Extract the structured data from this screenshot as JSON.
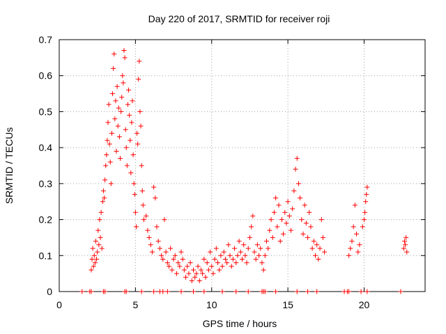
{
  "chart_data": {
    "type": "scatter",
    "title": "Day 220 of 2017, SRMTID for receiver roji",
    "xlabel": "GPS time / hours",
    "ylabel": "SRMTID / TECUs",
    "xlim": [
      0,
      24
    ],
    "ylim": [
      0,
      0.7
    ],
    "xticks": [
      0,
      5,
      10,
      15,
      20
    ],
    "xtick_labels": [
      "0",
      "5",
      "10",
      "15",
      "20"
    ],
    "yticks": [
      0,
      0.1,
      0.2,
      0.3,
      0.4,
      0.5,
      0.6,
      0.7
    ],
    "ytick_labels": [
      "0",
      "0.1",
      "0.2",
      "0.3",
      "0.4",
      "0.5",
      "0.6",
      "0.7"
    ],
    "grid": true,
    "marker": "+",
    "color": "#ff0000",
    "series": [
      {
        "name": "SRMTID",
        "points": [
          [
            2.1,
            0.06
          ],
          [
            2.15,
            0.09
          ],
          [
            2.2,
            0.12
          ],
          [
            2.25,
            0.07
          ],
          [
            2.3,
            0.1
          ],
          [
            2.35,
            0.08
          ],
          [
            2.4,
            0.14
          ],
          [
            2.45,
            0.09
          ],
          [
            2.5,
            0.11
          ],
          [
            2.55,
            0.17
          ],
          [
            2.6,
            0.13
          ],
          [
            2.65,
            0.2
          ],
          [
            2.7,
            0.15
          ],
          [
            2.75,
            0.22
          ],
          [
            2.8,
            0.12
          ],
          [
            2.85,
            0.25
          ],
          [
            2.9,
            0.28
          ],
          [
            2.95,
            0.26
          ],
          [
            3.0,
            0.31
          ],
          [
            3.05,
            0.35
          ],
          [
            3.1,
            0.38
          ],
          [
            3.15,
            0.42
          ],
          [
            3.2,
            0.47
          ],
          [
            3.25,
            0.52
          ],
          [
            3.3,
            0.41
          ],
          [
            3.35,
            0.36
          ],
          [
            3.4,
            0.3
          ],
          [
            3.45,
            0.44
          ],
          [
            3.5,
            0.55
          ],
          [
            3.55,
            0.62
          ],
          [
            3.6,
            0.66
          ],
          [
            3.65,
            0.48
          ],
          [
            3.7,
            0.53
          ],
          [
            3.75,
            0.39
          ],
          [
            3.8,
            0.57
          ],
          [
            3.85,
            0.46
          ],
          [
            3.9,
            0.51
          ],
          [
            3.95,
            0.43
          ],
          [
            4.0,
            0.37
          ],
          [
            4.05,
            0.5
          ],
          [
            4.1,
            0.54
          ],
          [
            4.15,
            0.6
          ],
          [
            4.2,
            0.58
          ],
          [
            4.25,
            0.67
          ],
          [
            4.3,
            0.65
          ],
          [
            4.35,
            0.45
          ],
          [
            4.4,
            0.4
          ],
          [
            4.45,
            0.35
          ],
          [
            4.5,
            0.52
          ],
          [
            4.55,
            0.56
          ],
          [
            4.6,
            0.49
          ],
          [
            4.65,
            0.42
          ],
          [
            4.7,
            0.33
          ],
          [
            4.75,
            0.47
          ],
          [
            4.8,
            0.53
          ],
          [
            4.85,
            0.38
          ],
          [
            4.9,
            0.3
          ],
          [
            4.95,
            0.27
          ],
          [
            5.0,
            0.22
          ],
          [
            5.05,
            0.18
          ],
          [
            5.1,
            0.44
          ],
          [
            5.15,
            0.41
          ],
          [
            5.2,
            0.59
          ],
          [
            5.25,
            0.64
          ],
          [
            5.3,
            0.5
          ],
          [
            5.35,
            0.46
          ],
          [
            5.4,
            0.35
          ],
          [
            5.45,
            0.28
          ],
          [
            5.5,
            0.24
          ],
          [
            5.55,
            0.2
          ],
          [
            5.7,
            0.21
          ],
          [
            5.8,
            0.17
          ],
          [
            5.9,
            0.15
          ],
          [
            6.0,
            0.13
          ],
          [
            6.1,
            0.11
          ],
          [
            6.2,
            0.29
          ],
          [
            6.3,
            0.26
          ],
          [
            6.4,
            0.18
          ],
          [
            6.5,
            0.14
          ],
          [
            6.6,
            0.12
          ],
          [
            6.7,
            0.1
          ],
          [
            6.8,
            0.09
          ],
          [
            6.9,
            0.2
          ],
          [
            7.0,
            0.11
          ],
          [
            7.1,
            0.08
          ],
          [
            7.2,
            0.07
          ],
          [
            7.3,
            0.12
          ],
          [
            7.4,
            0.06
          ],
          [
            7.5,
            0.09
          ],
          [
            7.6,
            0.1
          ],
          [
            7.7,
            0.05
          ],
          [
            7.8,
            0.08
          ],
          [
            7.9,
            0.07
          ],
          [
            8.0,
            0.11
          ],
          [
            8.1,
            0.09
          ],
          [
            8.2,
            0.06
          ],
          [
            8.3,
            0.04
          ],
          [
            8.4,
            0.07
          ],
          [
            8.5,
            0.05
          ],
          [
            8.6,
            0.08
          ],
          [
            8.7,
            0.03
          ],
          [
            8.8,
            0.06
          ],
          [
            8.9,
            0.04
          ],
          [
            9.0,
            0.05
          ],
          [
            9.1,
            0.07
          ],
          [
            9.2,
            0.03
          ],
          [
            9.3,
            0.06
          ],
          [
            9.4,
            0.05
          ],
          [
            9.5,
            0.09
          ],
          [
            9.6,
            0.04
          ],
          [
            9.7,
            0.08
          ],
          [
            9.8,
            0.06
          ],
          [
            9.9,
            0.11
          ],
          [
            10.0,
            0.07
          ],
          [
            10.1,
            0.05
          ],
          [
            10.2,
            0.09
          ],
          [
            10.3,
            0.12
          ],
          [
            10.4,
            0.08
          ],
          [
            10.5,
            0.06
          ],
          [
            10.6,
            0.1
          ],
          [
            10.7,
            0.07
          ],
          [
            10.8,
            0.11
          ],
          [
            10.9,
            0.09
          ],
          [
            11.0,
            0.08
          ],
          [
            11.1,
            0.13
          ],
          [
            11.2,
            0.1
          ],
          [
            11.3,
            0.07
          ],
          [
            11.4,
            0.09
          ],
          [
            11.5,
            0.12
          ],
          [
            11.6,
            0.08
          ],
          [
            11.7,
            0.1
          ],
          [
            11.8,
            0.14
          ],
          [
            11.9,
            0.11
          ],
          [
            12.0,
            0.09
          ],
          [
            12.1,
            0.13
          ],
          [
            12.2,
            0.1
          ],
          [
            12.3,
            0.08
          ],
          [
            12.4,
            0.12
          ],
          [
            12.5,
            0.15
          ],
          [
            12.6,
            0.18
          ],
          [
            12.7,
            0.21
          ],
          [
            12.8,
            0.11
          ],
          [
            12.9,
            0.09
          ],
          [
            13.0,
            0.13
          ],
          [
            13.1,
            0.1
          ],
          [
            13.2,
            0.12
          ],
          [
            13.3,
            0.08
          ],
          [
            13.4,
            0.06
          ],
          [
            13.5,
            0.1
          ],
          [
            13.6,
            0.14
          ],
          [
            13.7,
            0.12
          ],
          [
            13.8,
            0.17
          ],
          [
            13.9,
            0.2
          ],
          [
            14.0,
            0.15
          ],
          [
            14.1,
            0.22
          ],
          [
            14.2,
            0.26
          ],
          [
            14.3,
            0.18
          ],
          [
            14.4,
            0.24
          ],
          [
            14.5,
            0.14
          ],
          [
            14.6,
            0.2
          ],
          [
            14.7,
            0.16
          ],
          [
            14.8,
            0.22
          ],
          [
            14.9,
            0.19
          ],
          [
            15.0,
            0.25
          ],
          [
            15.1,
            0.21
          ],
          [
            15.2,
            0.17
          ],
          [
            15.3,
            0.23
          ],
          [
            15.4,
            0.28
          ],
          [
            15.5,
            0.34
          ],
          [
            15.6,
            0.37
          ],
          [
            15.7,
            0.3
          ],
          [
            15.8,
            0.26
          ],
          [
            15.9,
            0.2
          ],
          [
            16.0,
            0.16
          ],
          [
            16.1,
            0.24
          ],
          [
            16.2,
            0.19
          ],
          [
            16.3,
            0.15
          ],
          [
            16.4,
            0.22
          ],
          [
            16.5,
            0.18
          ],
          [
            16.6,
            0.12
          ],
          [
            16.7,
            0.14
          ],
          [
            16.8,
            0.1
          ],
          [
            16.9,
            0.13
          ],
          [
            17.0,
            0.09
          ],
          [
            17.1,
            0.12
          ],
          [
            17.2,
            0.2
          ],
          [
            17.3,
            0.15
          ],
          [
            17.4,
            0.11
          ],
          [
            19.0,
            0.1
          ],
          [
            19.1,
            0.12
          ],
          [
            19.2,
            0.14
          ],
          [
            19.3,
            0.18
          ],
          [
            19.4,
            0.24
          ],
          [
            19.5,
            0.16
          ],
          [
            19.6,
            0.11
          ],
          [
            19.7,
            0.13
          ],
          [
            19.9,
            0.18
          ],
          [
            20.0,
            0.2
          ],
          [
            20.05,
            0.22
          ],
          [
            20.1,
            0.25
          ],
          [
            20.15,
            0.27
          ],
          [
            20.2,
            0.29
          ],
          [
            22.6,
            0.12
          ],
          [
            22.65,
            0.14
          ],
          [
            22.7,
            0.13
          ],
          [
            22.75,
            0.15
          ],
          [
            22.8,
            0.11
          ]
        ],
        "zero_points": [
          1.5,
          2.0,
          2.1,
          2.9,
          3.0,
          4.3,
          4.4,
          5.4,
          6.2,
          6.6,
          6.8,
          7.1,
          8.0,
          8.8,
          9.5,
          10.7,
          11.6,
          12.4,
          13.3,
          13.4,
          13.5,
          14.2,
          15.6,
          16.3,
          16.9,
          18.7,
          18.9,
          19.0,
          19.8,
          20.2,
          22.4
        ]
      }
    ]
  }
}
